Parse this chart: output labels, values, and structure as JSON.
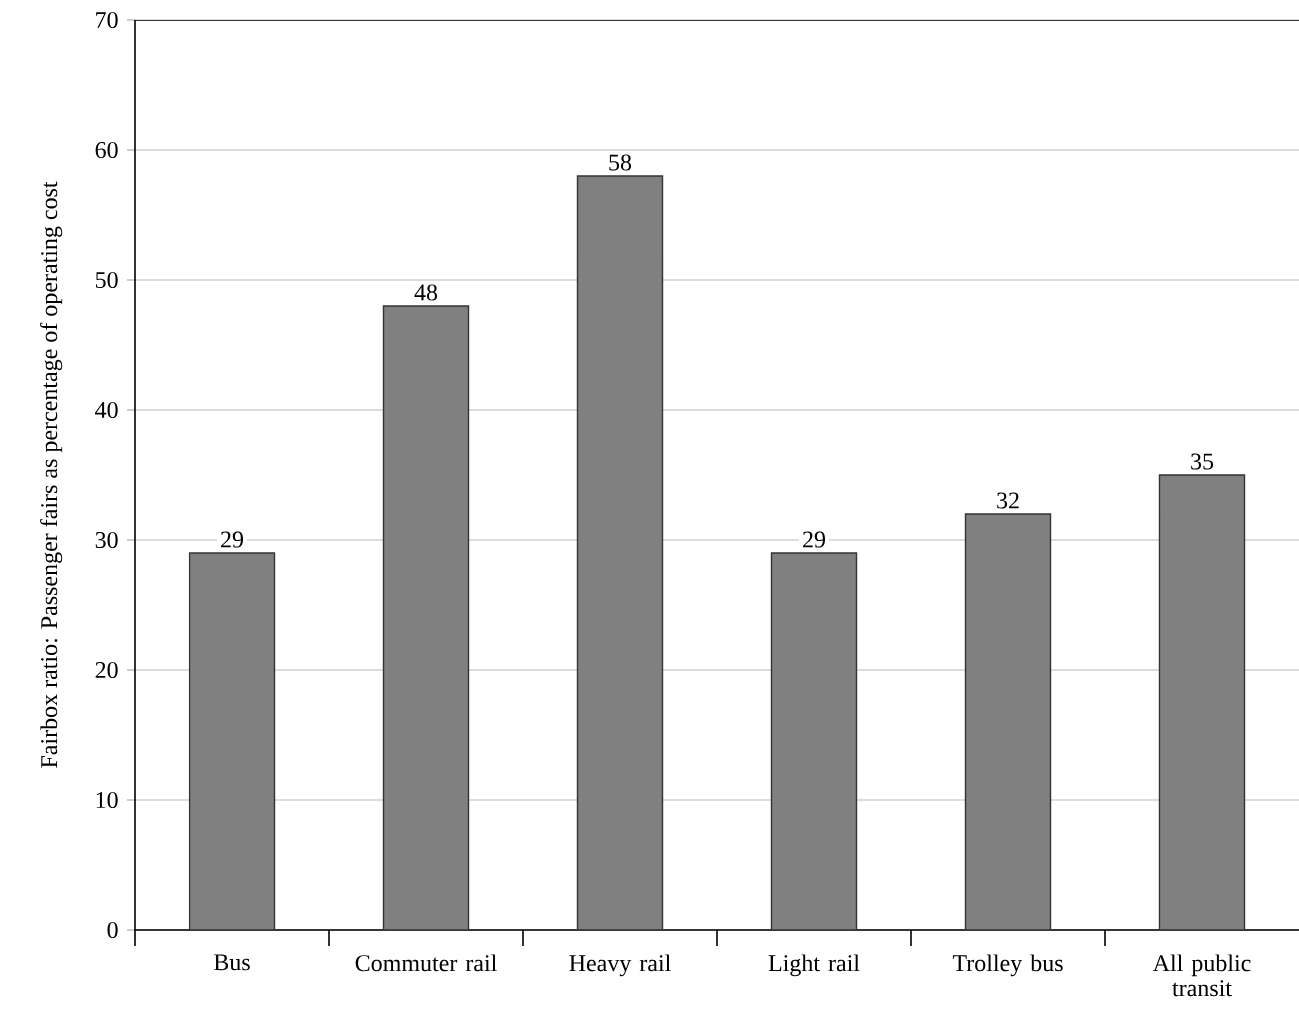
{
  "chart_data": {
    "type": "bar",
    "ylabel": "Fairbox ratio: Passenger fairs as percentage of operating cost",
    "categories": [
      "Bus",
      "Commuter rail",
      "Heavy rail",
      "Light rail",
      "Trolley bus",
      "All public transit"
    ],
    "values": [
      29,
      48,
      58,
      29,
      32,
      35
    ],
    "color": "#808080",
    "ylim": [
      0,
      70
    ],
    "yticks": [
      0,
      10,
      20,
      30,
      40,
      50,
      60,
      70
    ],
    "grid": "y",
    "data_labels": true
  }
}
